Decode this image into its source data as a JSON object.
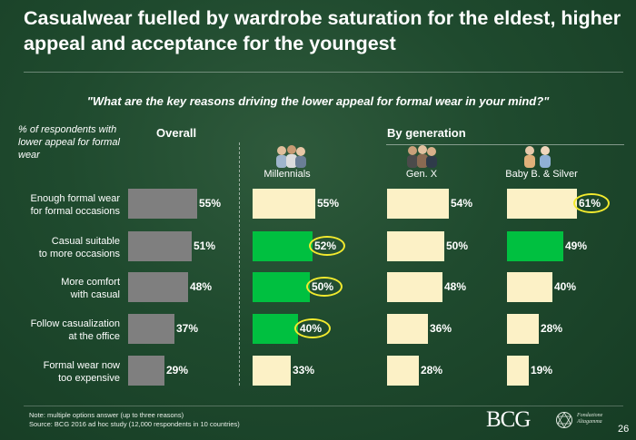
{
  "slide": {
    "title": "Casualwear fuelled by wardrobe saturation for the eldest, higher appeal and acceptance for the youngest",
    "question": "\"What are the key reasons driving the lower appeal for formal wear in your mind?\"",
    "axis_note": "% of respondents with lower appeal for formal wear",
    "overall_heading": "Overall",
    "by_generation_heading": "By generation",
    "note_line1": "Note: multiple options answer (up to three reasons)",
    "note_line2": "Source: BCG 2016 ad hoc study (12,000 respondents in 10 countries)",
    "logo_bcg": "BCG",
    "logo_fondazione_line1": "Fondazione",
    "logo_fondazione_line2": "Altagamma",
    "page_number": "26"
  },
  "colors": {
    "overall": "#7f7f7f",
    "base": "#fcf1c6",
    "highlight": "#00c040",
    "circle": "#f2ea2e"
  },
  "icons": [
    "millennials-people-icon",
    "gen-x-people-icon",
    "baby-boomers-silver-people-icon",
    "fondazione-altagamma-logo-icon"
  ],
  "chart_data": {
    "type": "bar",
    "orientation": "horizontal",
    "categories": [
      [
        "Enough formal wear",
        "for formal occasions"
      ],
      [
        "Casual suitable",
        "to more occasions"
      ],
      [
        "More comfort",
        "with casual"
      ],
      [
        "Follow casualization",
        "at the office"
      ],
      [
        "Formal wear now",
        "too expensive"
      ]
    ],
    "series": [
      {
        "name": "Overall",
        "values": [
          55,
          51,
          48,
          37,
          29
        ],
        "highlight": [
          false,
          false,
          false,
          false,
          false
        ],
        "circled": [
          false,
          false,
          false,
          false,
          false
        ]
      },
      {
        "name": "Millennials",
        "values": [
          55,
          52,
          50,
          40,
          33
        ],
        "highlight": [
          false,
          true,
          true,
          true,
          false
        ],
        "circled": [
          false,
          true,
          true,
          true,
          false
        ]
      },
      {
        "name": "Gen. X",
        "values": [
          54,
          50,
          48,
          36,
          28
        ],
        "highlight": [
          false,
          false,
          false,
          false,
          false
        ],
        "circled": [
          false,
          false,
          false,
          false,
          false
        ]
      },
      {
        "name": "Baby B. & Silver",
        "values": [
          61,
          49,
          40,
          28,
          19
        ],
        "highlight": [
          false,
          true,
          false,
          false,
          false
        ],
        "circled": [
          true,
          false,
          false,
          false,
          false
        ]
      }
    ],
    "value_suffix": "%",
    "xlim": [
      0,
      61
    ]
  }
}
